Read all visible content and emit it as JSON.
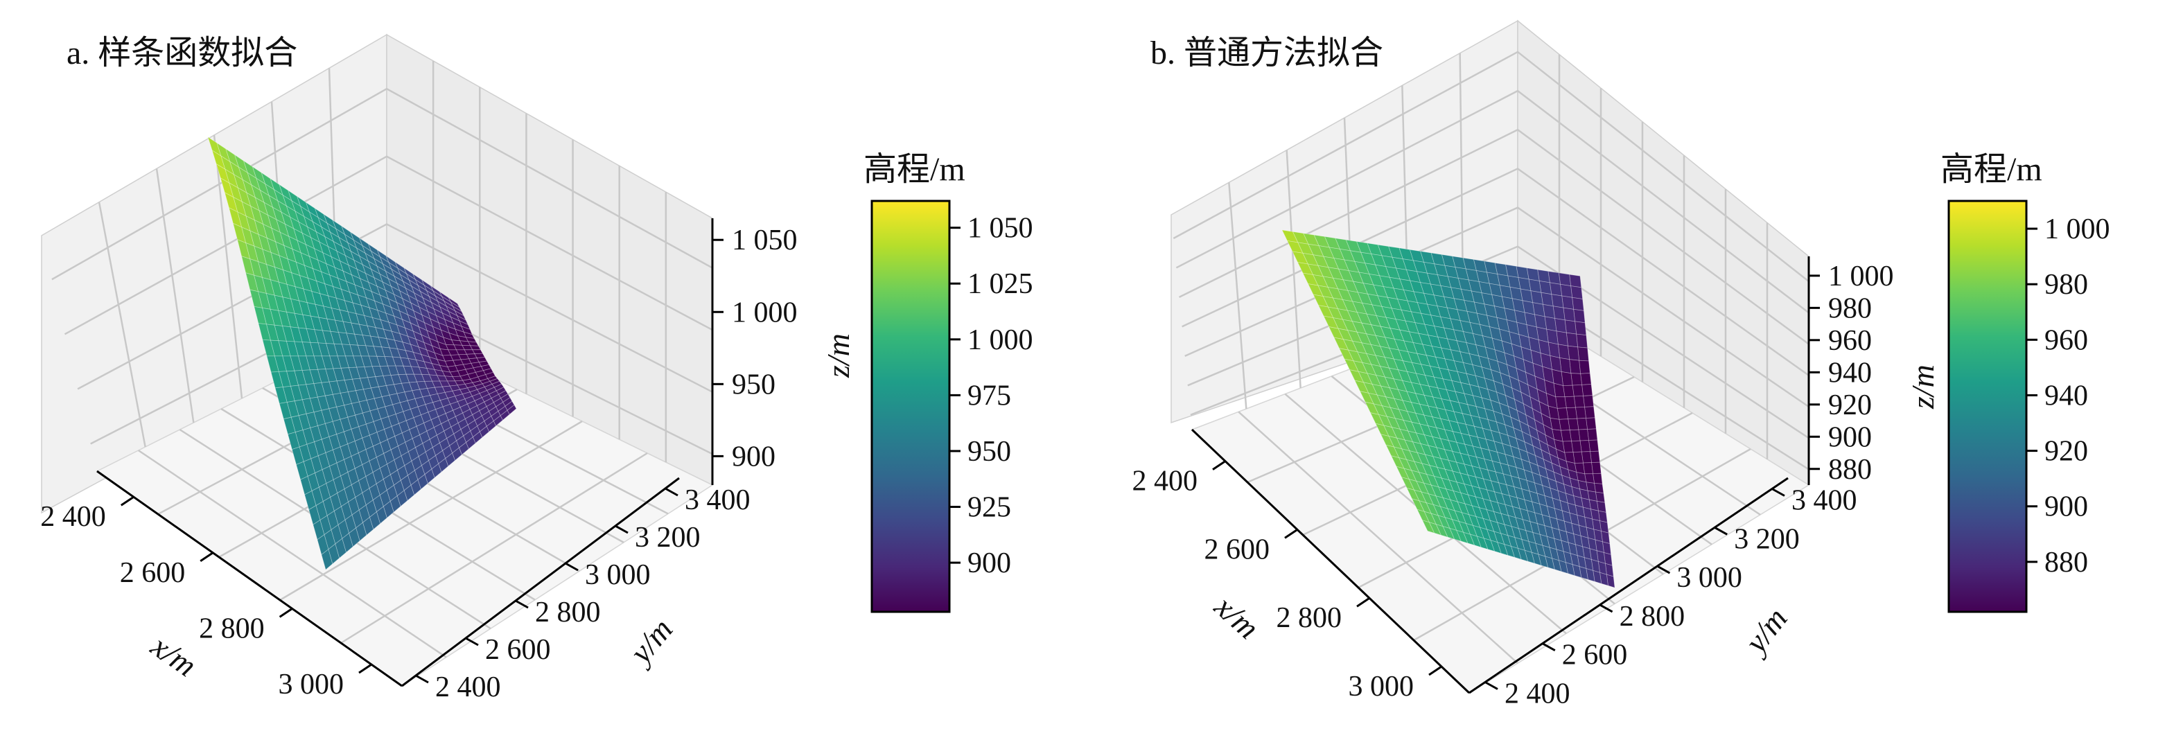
{
  "chart_data": [
    {
      "type": "surface",
      "panel_title": "a. 样条函数拟合",
      "xlabel": "x/m",
      "ylabel": "y/m",
      "zlabel": "z/m",
      "x_ticks": [
        "2 400",
        "2 600",
        "2 800",
        "3 000"
      ],
      "x_tick_values": [
        2400,
        2600,
        2800,
        3000
      ],
      "y_ticks": [
        "2 400",
        "2 600",
        "2 800",
        "3 000",
        "3 200",
        "3 400"
      ],
      "y_tick_values": [
        2400,
        2600,
        2800,
        3000,
        3200,
        3400
      ],
      "z_ticks": [
        "900",
        "950",
        "1 000",
        "1 050"
      ],
      "z_tick_values": [
        900,
        950,
        1000,
        1050
      ],
      "z_range": [
        880,
        1065
      ],
      "colormap": "viridis",
      "colorbar": {
        "title": "高程/m",
        "range": [
          878,
          1062
        ],
        "ticks": [
          "900",
          "925",
          "950",
          "975",
          "1 000",
          "1 025",
          "1 050"
        ],
        "tick_values": [
          900,
          925,
          950,
          975,
          1000,
          1025,
          1050
        ]
      },
      "surface_summary": {
        "max_elevation": 1062,
        "min_elevation": 878,
        "description_of_shape": "ridge high on low-y side, basin near mid x high y"
      }
    },
    {
      "type": "surface",
      "panel_title": "b. 普通方法拟合",
      "xlabel": "x/m",
      "ylabel": "y/m",
      "zlabel": "z/m",
      "x_ticks": [
        "2 400",
        "2 600",
        "2 800",
        "3 000"
      ],
      "x_tick_values": [
        2400,
        2600,
        2800,
        3000
      ],
      "y_ticks": [
        "2 400",
        "2 600",
        "2 800",
        "3 000",
        "3 200",
        "3 400"
      ],
      "y_tick_values": [
        2400,
        2600,
        2800,
        3000,
        3200,
        3400
      ],
      "z_ticks": [
        "880",
        "900",
        "920",
        "940",
        "960",
        "980",
        "1 000"
      ],
      "z_tick_values": [
        880,
        900,
        920,
        940,
        960,
        980,
        1000
      ],
      "z_range": [
        870,
        1012
      ],
      "colormap": "viridis",
      "colorbar": {
        "title": "高程/m",
        "range": [
          862,
          1010
        ],
        "ticks": [
          "880",
          "900",
          "920",
          "940",
          "960",
          "980",
          "1 000"
        ],
        "tick_values": [
          880,
          900,
          920,
          940,
          960,
          980,
          1000
        ]
      },
      "surface_summary": {
        "max_elevation": 1010,
        "min_elevation": 862,
        "description_of_shape": "broad plateau high on low-y side, basin near mid x high y"
      }
    }
  ],
  "colors": {
    "viridis": [
      "#440154",
      "#482878",
      "#3e4989",
      "#31688e",
      "#26828e",
      "#1f9e89",
      "#35b779",
      "#6ece58",
      "#b5de2b",
      "#fde725"
    ]
  }
}
